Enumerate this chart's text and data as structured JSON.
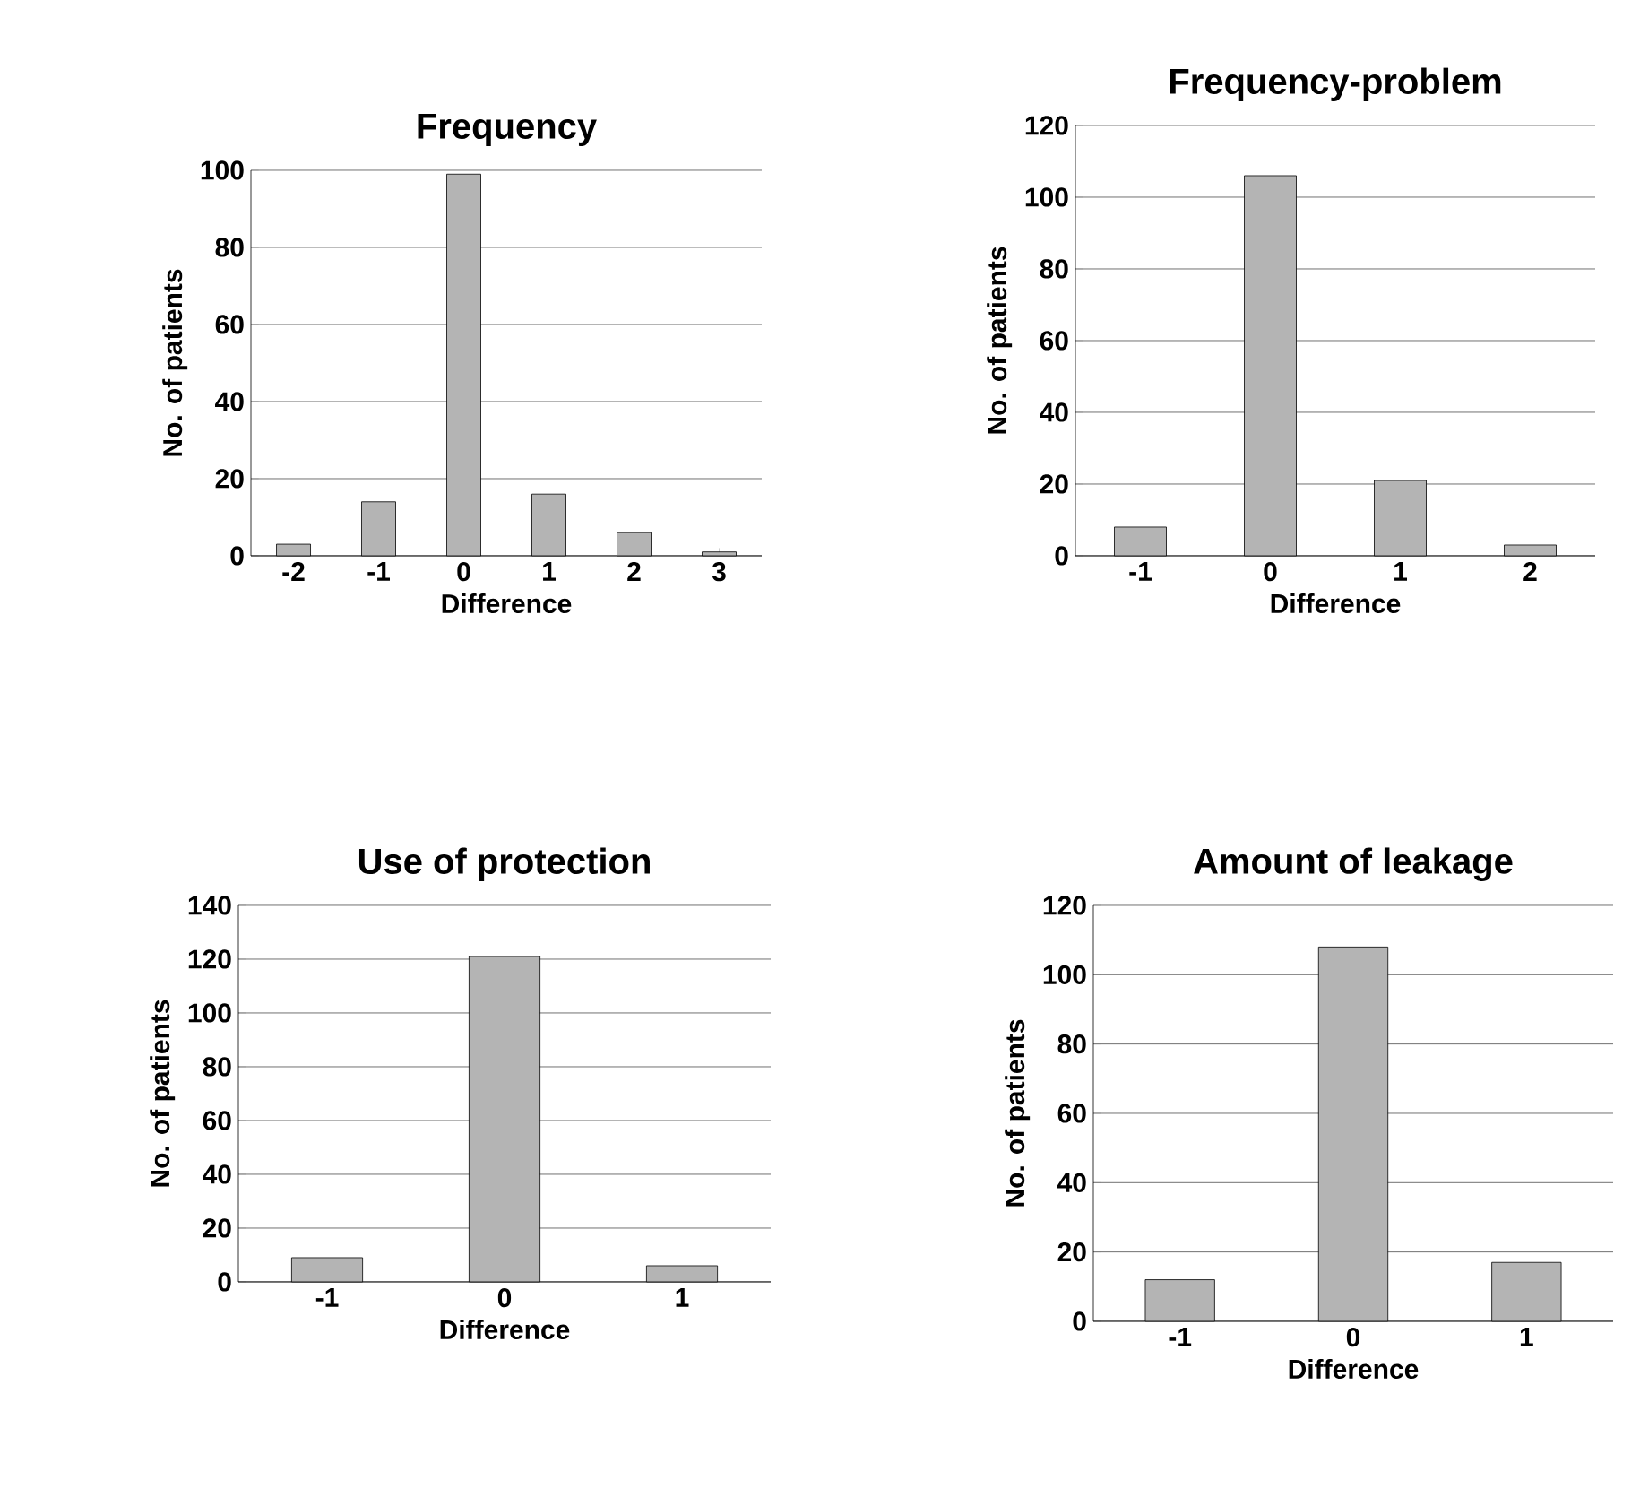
{
  "chart_data": [
    {
      "type": "bar",
      "title": "Frequency",
      "xlabel": "Difference",
      "ylabel": "No. of patients",
      "categories": [
        "-2",
        "-1",
        "0",
        "1",
        "2",
        "3"
      ],
      "values": [
        3,
        14,
        99,
        16,
        6,
        1
      ],
      "color": "#b4b4b4",
      "ylim": [
        0,
        100
      ],
      "yticks": [
        0,
        20,
        40,
        60,
        80,
        100
      ],
      "grid": "y"
    },
    {
      "type": "bar",
      "title": "Frequency-problem",
      "xlabel": "Difference",
      "ylabel": "No. of patients",
      "categories": [
        "-1",
        "0",
        "1",
        "2"
      ],
      "values": [
        8,
        106,
        21,
        3
      ],
      "color": "#b4b4b4",
      "ylim": [
        0,
        120
      ],
      "yticks": [
        0,
        20,
        40,
        60,
        80,
        100,
        120
      ],
      "grid": "y"
    },
    {
      "type": "bar",
      "title": "Use of protection",
      "xlabel": "Difference",
      "ylabel": "No. of patients",
      "categories": [
        "-1",
        "0",
        "1"
      ],
      "values": [
        9,
        121,
        6
      ],
      "color": "#b4b4b4",
      "ylim": [
        0,
        140
      ],
      "yticks": [
        0,
        20,
        40,
        60,
        80,
        100,
        120,
        140
      ],
      "grid": "y"
    },
    {
      "type": "bar",
      "title": "Amount of leakage",
      "xlabel": "Difference",
      "ylabel": "No. of patients",
      "categories": [
        "-1",
        "0",
        "1"
      ],
      "values": [
        12,
        108,
        17
      ],
      "color": "#b4b4b4",
      "ylim": [
        0,
        120
      ],
      "yticks": [
        0,
        20,
        40,
        60,
        80,
        100,
        120
      ],
      "grid": "y"
    }
  ]
}
